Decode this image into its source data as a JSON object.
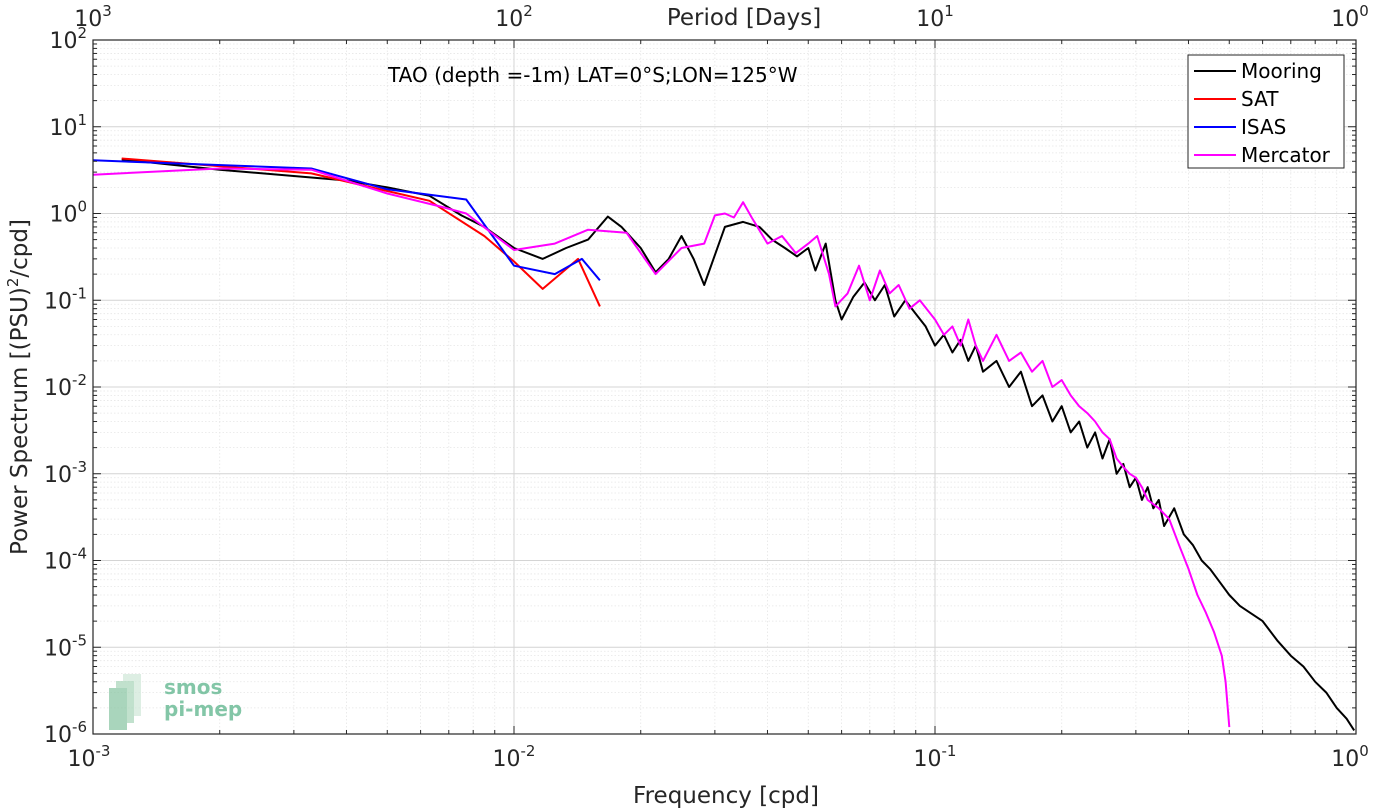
{
  "chart_data": {
    "type": "line",
    "title": "",
    "annotation": "TAO (depth =-1m) LAT=0°S;LON=125°W",
    "xlabel": "Frequency [cpd]",
    "ylabel": "Power Spectrum [(PSU)",
    "ylabel_sup": "2",
    "ylabel_tail": "/cpd]",
    "top_xlabel": "Period [Days]",
    "xscale": "log",
    "yscale": "log",
    "xlim": [
      0.001,
      1
    ],
    "ylim": [
      1e-06,
      100
    ],
    "grid": true,
    "legend_position": "top-right",
    "x_ticks": [
      {
        "base": "10",
        "exp": "-3"
      },
      {
        "base": "10",
        "exp": "-2"
      },
      {
        "base": "10",
        "exp": "-1"
      },
      {
        "base": "10",
        "exp": "0"
      }
    ],
    "top_ticks": [
      {
        "base": "10",
        "exp": "3"
      },
      {
        "base": "10",
        "exp": "2"
      },
      {
        "base": "10",
        "exp": "1"
      },
      {
        "base": "10",
        "exp": "0"
      }
    ],
    "y_ticks": [
      {
        "base": "10",
        "exp": "-6"
      },
      {
        "base": "10",
        "exp": "-5"
      },
      {
        "base": "10",
        "exp": "-4"
      },
      {
        "base": "10",
        "exp": "-3"
      },
      {
        "base": "10",
        "exp": "-2"
      },
      {
        "base": "10",
        "exp": "-1"
      },
      {
        "base": "10",
        "exp": "0"
      },
      {
        "base": "10",
        "exp": "1"
      },
      {
        "base": "10",
        "exp": "2"
      }
    ],
    "series": [
      {
        "name": "Mooring",
        "color": "#000000",
        "points": [
          [
            0.00117,
            4.2
          ],
          [
            0.0015,
            3.7
          ],
          [
            0.002,
            3.2
          ],
          [
            0.0033,
            2.6
          ],
          [
            0.004,
            2.4
          ],
          [
            0.005,
            2.0
          ],
          [
            0.0063,
            1.6
          ],
          [
            0.0075,
            0.95
          ],
          [
            0.0085,
            0.7
          ],
          [
            0.01,
            0.4
          ],
          [
            0.0117,
            0.3
          ],
          [
            0.0133,
            0.4
          ],
          [
            0.015,
            0.5
          ],
          [
            0.0167,
            0.92
          ],
          [
            0.018,
            0.7
          ],
          [
            0.02,
            0.4
          ],
          [
            0.0217,
            0.21
          ],
          [
            0.0233,
            0.3
          ],
          [
            0.025,
            0.55
          ],
          [
            0.0267,
            0.3
          ],
          [
            0.0283,
            0.15
          ],
          [
            0.0317,
            0.7
          ],
          [
            0.035,
            0.8
          ],
          [
            0.0383,
            0.7
          ],
          [
            0.041,
            0.5
          ],
          [
            0.044,
            0.4
          ],
          [
            0.047,
            0.32
          ],
          [
            0.05,
            0.4
          ],
          [
            0.052,
            0.22
          ],
          [
            0.055,
            0.45
          ],
          [
            0.058,
            0.1
          ],
          [
            0.06,
            0.06
          ],
          [
            0.064,
            0.11
          ],
          [
            0.068,
            0.16
          ],
          [
            0.072,
            0.1
          ],
          [
            0.076,
            0.15
          ],
          [
            0.08,
            0.065
          ],
          [
            0.085,
            0.1
          ],
          [
            0.09,
            0.07
          ],
          [
            0.095,
            0.05
          ],
          [
            0.1,
            0.03
          ],
          [
            0.105,
            0.04
          ],
          [
            0.11,
            0.025
          ],
          [
            0.115,
            0.035
          ],
          [
            0.12,
            0.02
          ],
          [
            0.125,
            0.03
          ],
          [
            0.13,
            0.015
          ],
          [
            0.14,
            0.02
          ],
          [
            0.15,
            0.01
          ],
          [
            0.16,
            0.015
          ],
          [
            0.17,
            0.006
          ],
          [
            0.18,
            0.008
          ],
          [
            0.19,
            0.004
          ],
          [
            0.2,
            0.006
          ],
          [
            0.21,
            0.003
          ],
          [
            0.22,
            0.004
          ],
          [
            0.23,
            0.002
          ],
          [
            0.24,
            0.003
          ],
          [
            0.25,
            0.0015
          ],
          [
            0.26,
            0.0025
          ],
          [
            0.27,
            0.001
          ],
          [
            0.28,
            0.0013
          ],
          [
            0.29,
            0.0007
          ],
          [
            0.3,
            0.0009
          ],
          [
            0.31,
            0.0005
          ],
          [
            0.32,
            0.0007
          ],
          [
            0.33,
            0.0004
          ],
          [
            0.34,
            0.0005
          ],
          [
            0.35,
            0.00025
          ],
          [
            0.37,
            0.0004
          ],
          [
            0.39,
            0.0002
          ],
          [
            0.41,
            0.00015
          ],
          [
            0.43,
            0.0001
          ],
          [
            0.45,
            8e-05
          ],
          [
            0.47,
            6e-05
          ],
          [
            0.5,
            4e-05
          ],
          [
            0.53,
            3e-05
          ],
          [
            0.56,
            2.5e-05
          ],
          [
            0.6,
            2e-05
          ],
          [
            0.65,
            1.2e-05
          ],
          [
            0.7,
            8e-06
          ],
          [
            0.75,
            6e-06
          ],
          [
            0.8,
            4e-06
          ],
          [
            0.85,
            3e-06
          ],
          [
            0.9,
            2e-06
          ],
          [
            0.95,
            1.5e-06
          ],
          [
            0.99,
            1.1e-06
          ]
        ]
      },
      {
        "name": "SAT",
        "color": "#ff0000",
        "points": [
          [
            0.00117,
            4.3
          ],
          [
            0.0033,
            2.9
          ],
          [
            0.0063,
            1.4
          ],
          [
            0.0085,
            0.55
          ],
          [
            0.01,
            0.28
          ],
          [
            0.0117,
            0.135
          ],
          [
            0.0142,
            0.3
          ],
          [
            0.016,
            0.085
          ]
        ]
      },
      {
        "name": "ISAS",
        "color": "#0000ff",
        "points": [
          [
            0.001,
            4.1
          ],
          [
            0.0033,
            3.3
          ],
          [
            0.005,
            1.9
          ],
          [
            0.0077,
            1.45
          ],
          [
            0.01,
            0.25
          ],
          [
            0.0125,
            0.2
          ],
          [
            0.0145,
            0.3
          ],
          [
            0.016,
            0.17
          ]
        ]
      },
      {
        "name": "Mercator",
        "color": "#ff00ff",
        "points": [
          [
            0.001,
            2.8
          ],
          [
            0.002,
            3.3
          ],
          [
            0.0033,
            3.2
          ],
          [
            0.005,
            1.7
          ],
          [
            0.0067,
            1.2
          ],
          [
            0.0077,
            1.0
          ],
          [
            0.01,
            0.38
          ],
          [
            0.0125,
            0.45
          ],
          [
            0.015,
            0.65
          ],
          [
            0.0185,
            0.6
          ],
          [
            0.0217,
            0.2
          ],
          [
            0.025,
            0.4
          ],
          [
            0.0283,
            0.45
          ],
          [
            0.03,
            0.95
          ],
          [
            0.0317,
            1.0
          ],
          [
            0.0333,
            0.9
          ],
          [
            0.035,
            1.35
          ],
          [
            0.0367,
            0.9
          ],
          [
            0.04,
            0.45
          ],
          [
            0.0433,
            0.55
          ],
          [
            0.0467,
            0.35
          ],
          [
            0.05,
            0.45
          ],
          [
            0.0525,
            0.55
          ],
          [
            0.056,
            0.2
          ],
          [
            0.058,
            0.085
          ],
          [
            0.062,
            0.12
          ],
          [
            0.066,
            0.25
          ],
          [
            0.07,
            0.1
          ],
          [
            0.074,
            0.22
          ],
          [
            0.078,
            0.12
          ],
          [
            0.082,
            0.15
          ],
          [
            0.087,
            0.08
          ],
          [
            0.092,
            0.1
          ],
          [
            0.1,
            0.06
          ],
          [
            0.105,
            0.04
          ],
          [
            0.11,
            0.05
          ],
          [
            0.115,
            0.03
          ],
          [
            0.12,
            0.06
          ],
          [
            0.125,
            0.03
          ],
          [
            0.13,
            0.02
          ],
          [
            0.14,
            0.04
          ],
          [
            0.15,
            0.02
          ],
          [
            0.16,
            0.025
          ],
          [
            0.17,
            0.015
          ],
          [
            0.18,
            0.02
          ],
          [
            0.19,
            0.01
          ],
          [
            0.2,
            0.012
          ],
          [
            0.21,
            0.008
          ],
          [
            0.22,
            0.006
          ],
          [
            0.23,
            0.005
          ],
          [
            0.24,
            0.004
          ],
          [
            0.25,
            0.003
          ],
          [
            0.26,
            0.0025
          ],
          [
            0.27,
            0.0015
          ],
          [
            0.28,
            0.0012
          ],
          [
            0.29,
            0.001
          ],
          [
            0.3,
            0.0009
          ],
          [
            0.31,
            0.0007
          ],
          [
            0.32,
            0.0005
          ],
          [
            0.34,
            0.0004
          ],
          [
            0.36,
            0.0003
          ],
          [
            0.38,
            0.00015
          ],
          [
            0.4,
            8e-05
          ],
          [
            0.42,
            4e-05
          ],
          [
            0.44,
            2.5e-05
          ],
          [
            0.46,
            1.5e-05
          ],
          [
            0.48,
            8e-06
          ],
          [
            0.49,
            4e-06
          ],
          [
            0.5,
            1.2e-06
          ]
        ]
      }
    ]
  },
  "logo": {
    "line1": "smos",
    "line2": "pi-mep",
    "color": "#4fae82"
  }
}
